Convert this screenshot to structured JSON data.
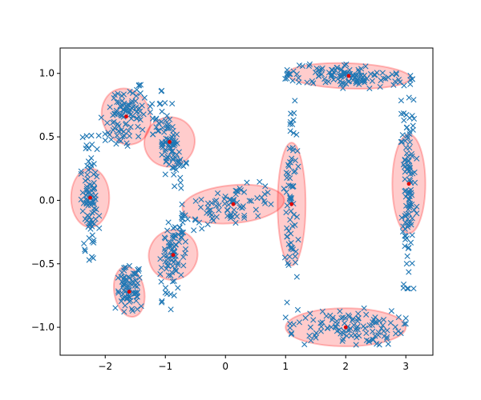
{
  "chart_data": {
    "type": "scatter",
    "xlim": [
      -2.75,
      3.45
    ],
    "ylim": [
      -1.22,
      1.2
    ],
    "xticks": [
      -2,
      -1,
      0,
      1,
      2,
      3
    ],
    "yticks": [
      -1.0,
      -0.5,
      0.0,
      0.5,
      1.0
    ],
    "xtick_labels": [
      "−2",
      "−1",
      "0",
      "1",
      "2",
      "3"
    ],
    "ytick_labels": [
      "−1.0",
      "−0.5",
      "0.0",
      "0.5",
      "1.0"
    ],
    "grid": false,
    "colors": {
      "points": "#1f77b4",
      "centers": "#e00000",
      "ellipse_fill": "rgba(255,0,0,0.2)",
      "ellipse_edge": "rgba(255,0,0,0.25)"
    },
    "point_marker": "x",
    "center_marker": "dot",
    "components": [
      {
        "center": [
          -1.65,
          0.66
        ],
        "width": 0.8,
        "height": 0.45,
        "angle_deg": 20,
        "n_points": 95
      },
      {
        "center": [
          -0.93,
          0.46
        ],
        "width": 0.82,
        "height": 0.4,
        "angle_deg": -57,
        "n_points": 95
      },
      {
        "center": [
          -2.25,
          0.02
        ],
        "width": 0.98,
        "height": 0.3,
        "angle_deg": 90,
        "n_points": 90
      },
      {
        "center": [
          -0.87,
          -0.43
        ],
        "width": 0.84,
        "height": 0.38,
        "angle_deg": 62,
        "n_points": 85
      },
      {
        "center": [
          -1.6,
          -0.72
        ],
        "width": 0.5,
        "height": 0.4,
        "angle_deg": 10,
        "n_points": 75
      },
      {
        "center": [
          0.13,
          -0.03
        ],
        "width": 1.7,
        "height": 0.3,
        "angle_deg": 5,
        "n_points": 80
      },
      {
        "center": [
          1.1,
          -0.03
        ],
        "width": 2.05,
        "height": 0.22,
        "angle_deg": 90,
        "n_points": 75
      },
      {
        "center": [
          2.05,
          0.98
        ],
        "width": 2.05,
        "height": 0.2,
        "angle_deg": -2,
        "n_points": 120
      },
      {
        "center": [
          2.0,
          -1.0
        ],
        "width": 2.0,
        "height": 0.3,
        "angle_deg": 0,
        "n_points": 110
      },
      {
        "center": [
          3.05,
          0.13
        ],
        "width": 1.65,
        "height": 0.26,
        "angle_deg": 90,
        "n_points": 110
      }
    ]
  }
}
